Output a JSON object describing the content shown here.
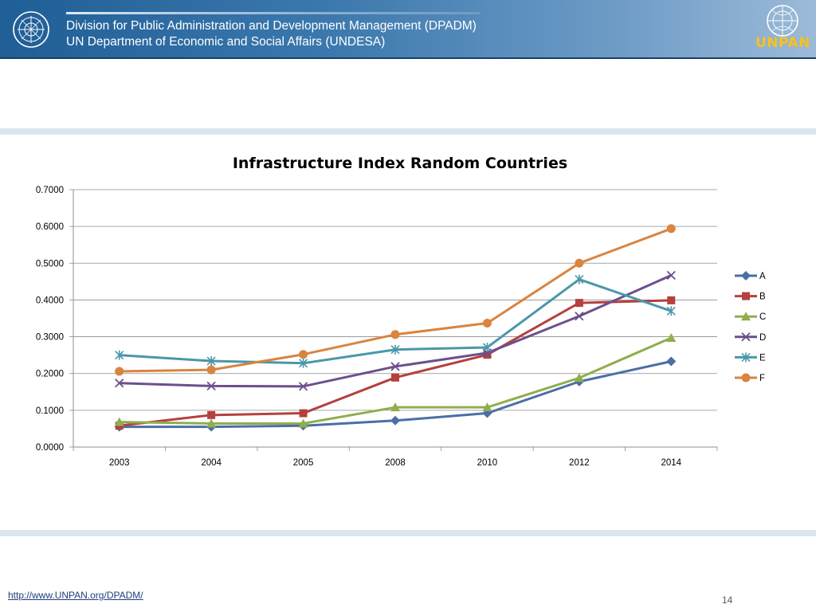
{
  "header": {
    "line1": "Division for Public Administration and Development Management (DPADM)",
    "line2": "UN Department of Economic and Social Affairs (UNDESA)",
    "logo_text": "UNPAN"
  },
  "footer": {
    "url": "http://www.UNPAN.org/DPADM/",
    "page_number": "14"
  },
  "colors": {
    "header_start": "#1f5e96",
    "band": "#dbe5ee"
  },
  "chart_data": {
    "type": "line",
    "title": "Infrastructure Index Random Countries",
    "xlabel": "",
    "ylabel": "",
    "categories": [
      "2003",
      "2004",
      "2005",
      "2008",
      "2010",
      "2012",
      "2014"
    ],
    "ylim": [
      0,
      0.7
    ],
    "yticks": [
      "0.0000",
      "0.1000",
      "0.2000",
      "0.3000",
      "0.4000",
      "0.5000",
      "0.6000",
      "0.7000"
    ],
    "grid": true,
    "legend_position": "right",
    "series": [
      {
        "name": "A",
        "color": "#4a6fa5",
        "marker": "diamond",
        "values": [
          0.055,
          0.055,
          0.058,
          0.072,
          0.092,
          0.178,
          0.233
        ]
      },
      {
        "name": "B",
        "color": "#b5403d",
        "marker": "square",
        "values": [
          0.058,
          0.087,
          0.092,
          0.189,
          0.251,
          0.392,
          0.399
        ]
      },
      {
        "name": "C",
        "color": "#8fae4e",
        "marker": "triangle",
        "values": [
          0.068,
          0.064,
          0.064,
          0.108,
          0.108,
          0.188,
          0.297
        ]
      },
      {
        "name": "D",
        "color": "#6c4f8c",
        "marker": "x",
        "values": [
          0.174,
          0.166,
          0.165,
          0.219,
          0.256,
          0.356,
          0.467
        ]
      },
      {
        "name": "E",
        "color": "#4b97aa",
        "marker": "star",
        "values": [
          0.25,
          0.234,
          0.228,
          0.265,
          0.271,
          0.456,
          0.37
        ]
      },
      {
        "name": "F",
        "color": "#d9843f",
        "marker": "circle",
        "values": [
          0.206,
          0.21,
          0.252,
          0.306,
          0.337,
          0.5,
          0.594
        ]
      }
    ]
  }
}
